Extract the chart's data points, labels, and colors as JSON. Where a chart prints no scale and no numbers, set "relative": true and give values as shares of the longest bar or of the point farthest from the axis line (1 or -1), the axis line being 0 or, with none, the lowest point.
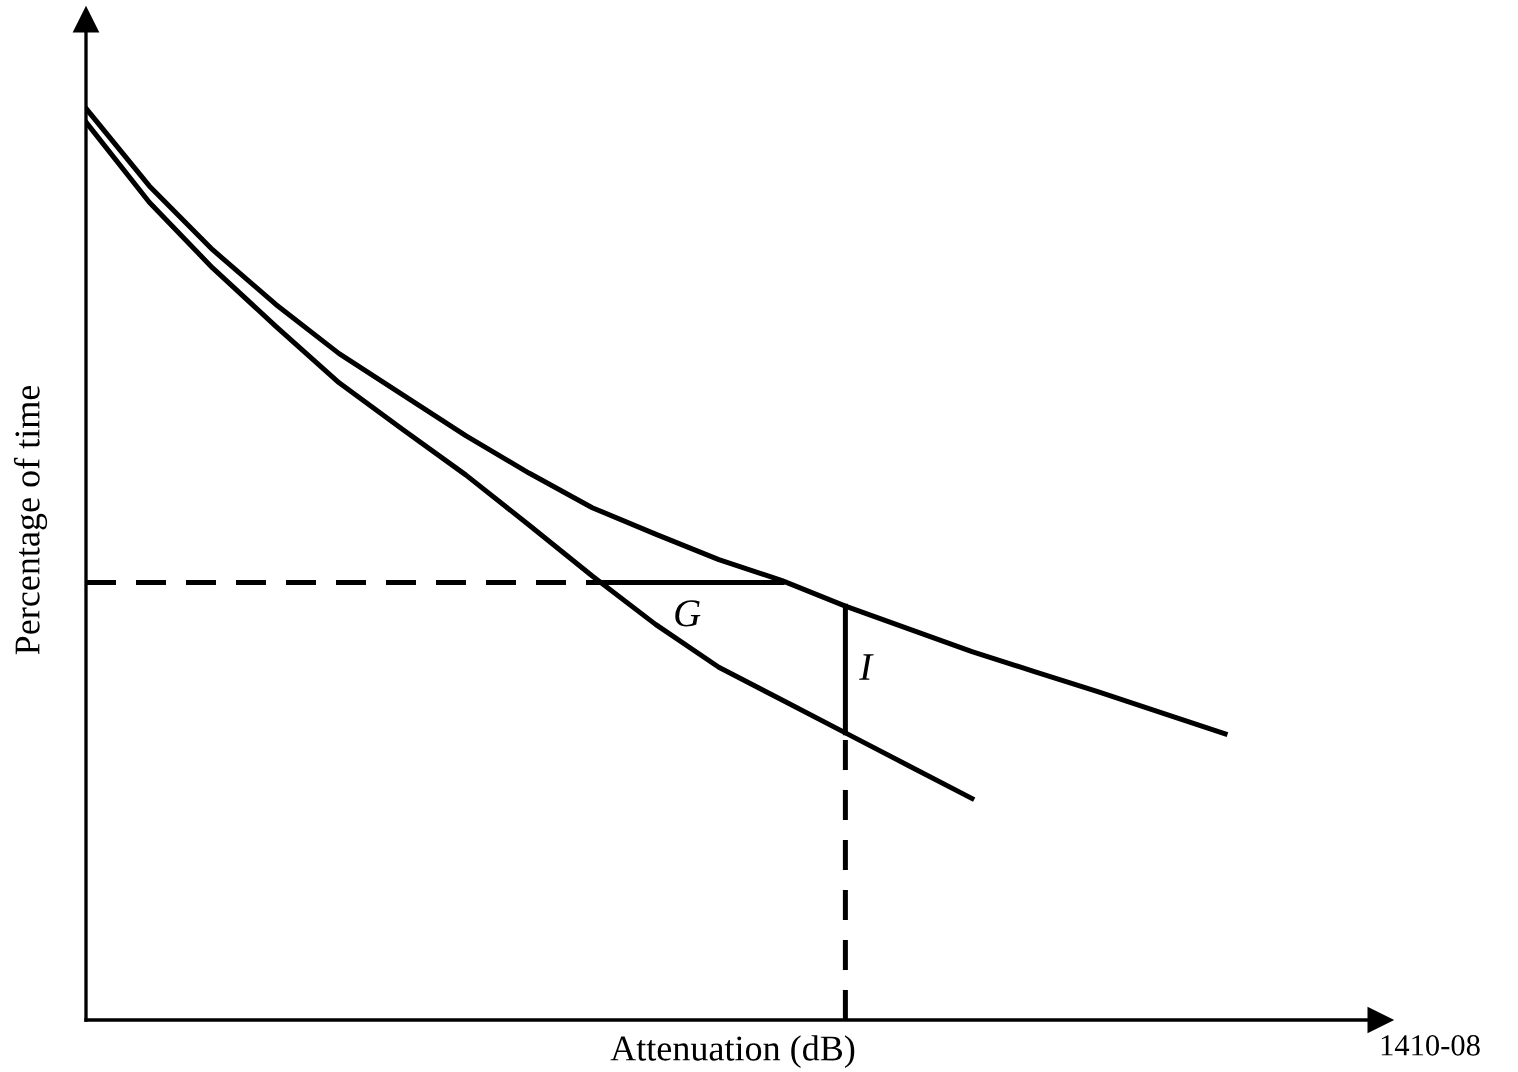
{
  "chart_data": {
    "type": "line",
    "relative": true,
    "xlabel": "Attenuation (dB)",
    "ylabel": "Percentage of time",
    "categories": [
      null,
      null,
      null,
      null,
      null,
      null,
      null,
      null,
      null,
      null,
      null,
      null,
      null,
      null,
      null,
      null,
      null,
      null,
      null
    ],
    "series": [
      {
        "color": "#000000",
        "values": [
          1.0,
          0.915,
          0.845,
          0.785,
          0.731,
          0.686,
          0.641,
          0.6,
          0.562,
          0.533,
          0.505,
          0.482,
          0.454,
          0.429,
          0.404,
          0.382,
          0.36,
          0.337,
          0.314
        ]
      },
      {
        "color": "#000000",
        "values": [
          0.985,
          0.897,
          0.825,
          0.761,
          0.699,
          0.648,
          0.598,
          0.543,
          0.487,
          0.434,
          0.387,
          0.351,
          0.315,
          0.279,
          0.243,
          null,
          null,
          null,
          null
        ]
      },
      {
        "color": "#000000",
        "line_style": "dashed",
        "values": [
          0.48,
          0.48,
          0.48,
          0.48,
          0.48,
          0.48,
          0.48,
          0.48,
          0.48,
          null,
          null,
          null,
          null,
          null,
          null,
          null,
          null,
          null,
          null
        ]
      },
      {
        "color": "#000000",
        "values": [
          null,
          null,
          null,
          null,
          null,
          null,
          null,
          null,
          0.48,
          0.48,
          0.48,
          0.48,
          null,
          null,
          null,
          null,
          null,
          null,
          null
        ]
      }
    ],
    "annotations": [
      "G",
      "I",
      "1410-08"
    ]
  }
}
